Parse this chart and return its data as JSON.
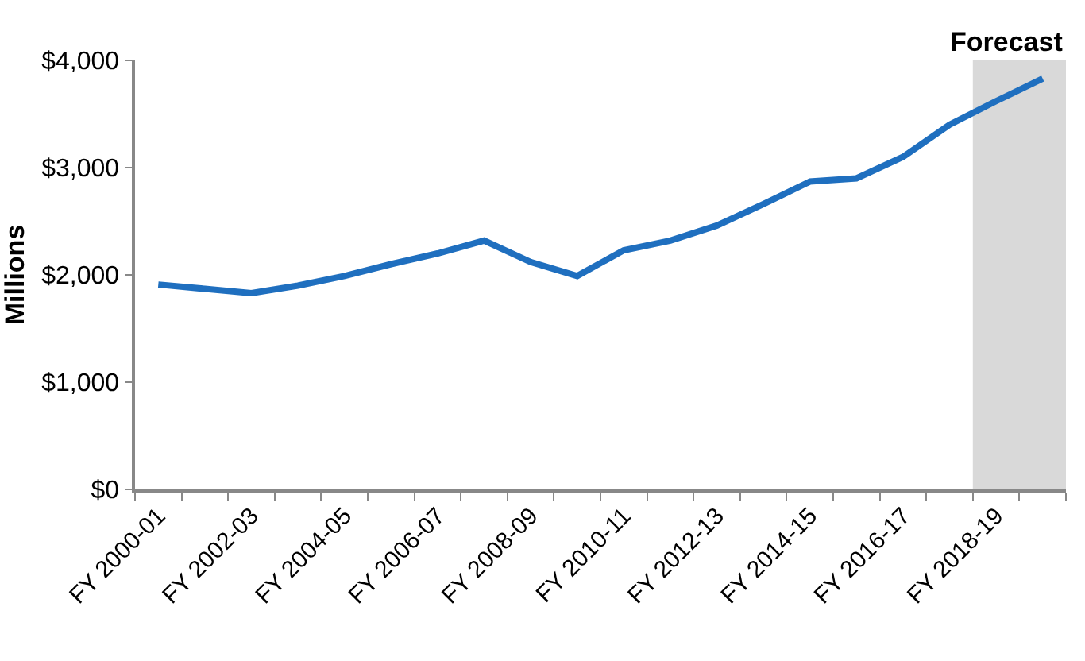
{
  "chart_data": {
    "type": "line",
    "ylabel": "Millions",
    "categories": [
      "FY 2000-01",
      null,
      "FY 2002-03",
      null,
      "FY 2004-05",
      null,
      "FY 2006-07",
      null,
      "FY 2008-09",
      null,
      "FY 2010-11",
      null,
      "FY 2012-13",
      null,
      "FY 2014-15",
      null,
      "FY 2016-17",
      null,
      "FY 2018-19",
      null
    ],
    "series": [
      {
        "color": "#1f6fbf",
        "values": [
          1910,
          1870,
          1830,
          1900,
          1990,
          2100,
          2200,
          2320,
          2120,
          1990,
          2230,
          2320,
          2460,
          2660,
          2870,
          2900,
          3100,
          3400,
          3620,
          3830
        ]
      }
    ],
    "ylim": [
      0,
      4000
    ],
    "yticks": [
      {
        "value": 0,
        "label": "$0"
      },
      {
        "value": 1000,
        "label": "$1,000"
      },
      {
        "value": 2000,
        "label": "$2,000"
      },
      {
        "value": 3000,
        "label": "$3,000"
      },
      {
        "value": 4000,
        "label": "$4,000"
      }
    ],
    "annotations": [
      "Forecast"
    ],
    "marker": "none",
    "line_style": "solid"
  }
}
